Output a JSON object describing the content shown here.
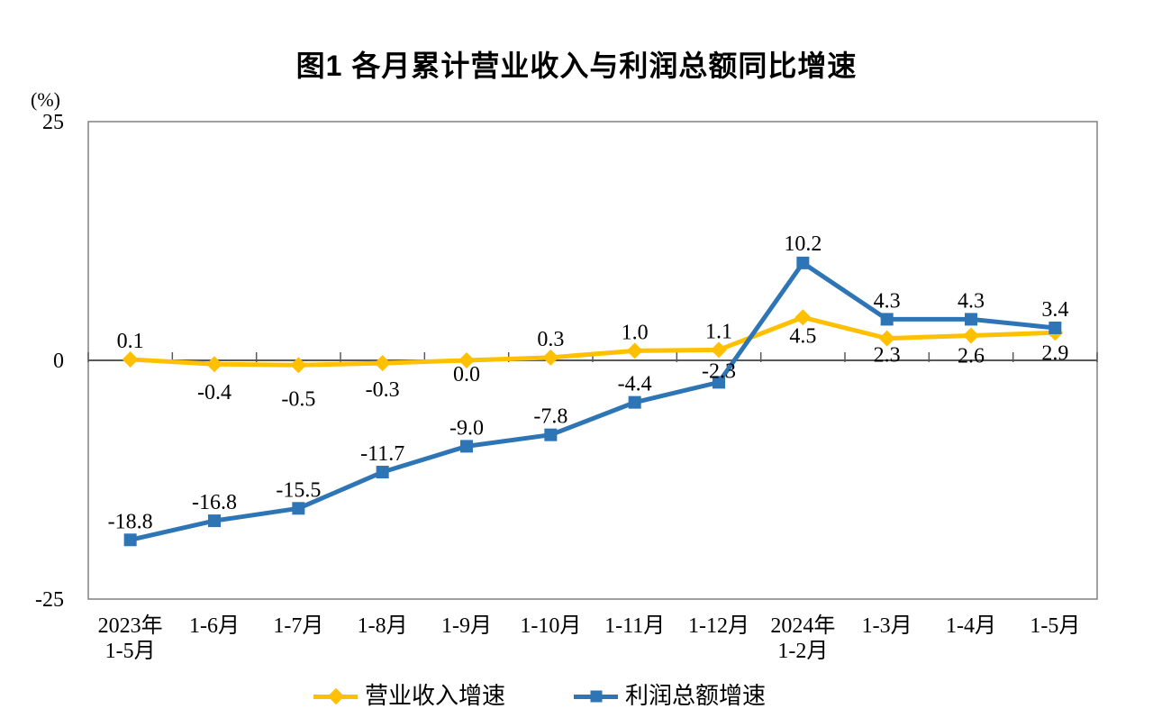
{
  "chart_data": {
    "type": "line",
    "title": "图1  各月累计营业收入与利润总额同比增速",
    "ylabel": "(%)",
    "ylim": [
      -25,
      25
    ],
    "yticks": [
      25,
      0,
      -25
    ],
    "grid": false,
    "legend_position": "bottom",
    "categories": [
      [
        "2023年",
        "1-5月"
      ],
      [
        "1-6月"
      ],
      [
        "1-7月"
      ],
      [
        "1-8月"
      ],
      [
        "1-9月"
      ],
      [
        "1-10月"
      ],
      [
        "1-11月"
      ],
      [
        "1-12月"
      ],
      [
        "2024年",
        "1-2月"
      ],
      [
        "1-3月"
      ],
      [
        "1-4月"
      ],
      [
        "1-5月"
      ]
    ],
    "series": [
      {
        "name": "营业收入增速",
        "color": "#FFC000",
        "marker": "diamond",
        "values": [
          0.1,
          -0.4,
          -0.5,
          -0.3,
          0.0,
          0.3,
          1.0,
          1.1,
          4.5,
          2.3,
          2.6,
          2.9
        ],
        "label_pos": [
          "above",
          "below",
          "below",
          "below",
          "below",
          "above",
          "above",
          "above",
          "below",
          "below",
          "below",
          "below"
        ],
        "label_dy": [
          0,
          9,
          15,
          7,
          -7,
          0,
          0,
          0,
          -2,
          -4,
          0,
          0
        ]
      },
      {
        "name": "利润总额增速",
        "color": "#2E75B6",
        "marker": "square",
        "values": [
          -18.8,
          -16.8,
          -15.5,
          -11.7,
          -9.0,
          -7.8,
          -4.4,
          -2.3,
          10.2,
          4.3,
          4.3,
          3.4
        ],
        "label_pos": [
          "above",
          "above",
          "above",
          "above",
          "above",
          "above",
          "above",
          "above",
          "above",
          "above",
          "above",
          "above"
        ],
        "label_dy": [
          0,
          0,
          0,
          0,
          0,
          0,
          0,
          8,
          -1,
          0,
          0,
          0
        ]
      }
    ],
    "colors": {
      "axis": "#595959",
      "border": "#808080",
      "text": "#000000"
    }
  }
}
